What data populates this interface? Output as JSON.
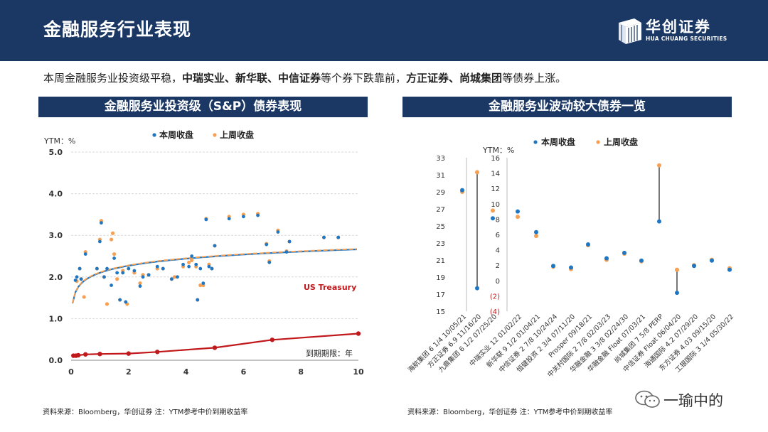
{
  "header": {
    "title": "金融服务行业表现",
    "logo_text": "华创证券",
    "logo_sub": "HUA CHUANG SECURITIES",
    "brand_color": "#1b3764"
  },
  "summary": {
    "p1": "本周金融服务业投资级平稳，",
    "b1": "中瑞实业、新华联、中信证券",
    "p2": "等个券下跌靠前，",
    "b2": "方正证券、尚城集团",
    "p3": "等债券上涨。"
  },
  "left_panel": {
    "title": "金融服务业投资级（S&P）债券表现",
    "source": "资料来源：Bloomberg，华创证券      注：YTM参考中价到期收益率"
  },
  "right_panel": {
    "title": "金融服务业波动较大债券一览",
    "source": "资料来源：Bloomberg，华创证券      注：YTM参考中价到期收益率"
  },
  "watermark": {
    "text": "一瑜中的"
  },
  "colors": {
    "this_week": "#1f77c4",
    "last_week": "#f5a055",
    "treasury": "#c0181b",
    "connector": "#555555"
  },
  "chart_data": [
    {
      "type": "scatter",
      "ylabel": "YTM：%",
      "xlabel": "到期期限：年",
      "xlim": [
        0,
        10
      ],
      "ylim": [
        0,
        5
      ],
      "x_ticks": [
        0,
        2,
        4,
        6,
        8,
        10
      ],
      "y_ticks": [
        "0.0",
        "1.0",
        "2.0",
        "3.0",
        "4.0",
        "5.0"
      ],
      "legend": [
        "本周收盘",
        "上周收盘"
      ],
      "treasury_label": "US Treasury",
      "series": [
        {
          "name": "本周收盘",
          "points": [
            [
              0.15,
              1.92
            ],
            [
              0.2,
              2.0
            ],
            [
              0.3,
              2.2
            ],
            [
              0.35,
              1.95
            ],
            [
              0.5,
              2.55
            ],
            [
              0.9,
              2.2
            ],
            [
              1.0,
              2.85
            ],
            [
              1.05,
              3.3
            ],
            [
              1.15,
              2.0
            ],
            [
              1.25,
              2.2
            ],
            [
              1.4,
              1.8
            ],
            [
              1.5,
              2.45
            ],
            [
              1.6,
              2.1
            ],
            [
              1.7,
              1.45
            ],
            [
              1.8,
              2.1
            ],
            [
              1.9,
              1.4
            ],
            [
              2.0,
              2.2
            ],
            [
              2.2,
              2.15
            ],
            [
              2.4,
              1.78
            ],
            [
              2.5,
              2.0
            ],
            [
              2.7,
              2.05
            ],
            [
              3.0,
              2.25
            ],
            [
              3.2,
              2.2
            ],
            [
              3.5,
              1.95
            ],
            [
              3.7,
              2.0
            ],
            [
              3.9,
              2.3
            ],
            [
              4.1,
              2.25
            ],
            [
              4.2,
              2.5
            ],
            [
              4.35,
              2.3
            ],
            [
              4.4,
              1.45
            ],
            [
              4.5,
              2.2
            ],
            [
              4.6,
              1.85
            ],
            [
              4.7,
              3.38
            ],
            [
              4.8,
              2.25
            ],
            [
              4.9,
              2.2
            ],
            [
              5.0,
              2.75
            ],
            [
              5.5,
              3.4
            ],
            [
              6.0,
              3.45
            ],
            [
              6.5,
              3.48
            ],
            [
              6.8,
              2.78
            ],
            [
              6.9,
              2.35
            ],
            [
              7.2,
              3.08
            ],
            [
              7.5,
              2.6
            ],
            [
              7.6,
              2.85
            ],
            [
              8.8,
              2.95
            ],
            [
              9.3,
              2.95
            ]
          ]
        },
        {
          "name": "上周收盘",
          "points": [
            [
              0.2,
              1.9
            ],
            [
              0.3,
              2.2
            ],
            [
              0.35,
              1.95
            ],
            [
              0.45,
              1.52
            ],
            [
              0.5,
              2.6
            ],
            [
              0.9,
              2.2
            ],
            [
              1.0,
              2.9
            ],
            [
              1.05,
              3.35
            ],
            [
              1.15,
              2.0
            ],
            [
              1.25,
              1.35
            ],
            [
              1.4,
              2.9
            ],
            [
              1.45,
              3.05
            ],
            [
              1.5,
              2.55
            ],
            [
              1.6,
              1.95
            ],
            [
              1.7,
              1.45
            ],
            [
              1.8,
              2.15
            ],
            [
              1.95,
              1.35
            ],
            [
              2.2,
              2.1
            ],
            [
              2.4,
              1.85
            ],
            [
              2.5,
              2.05
            ],
            [
              2.7,
              2.05
            ],
            [
              3.0,
              2.2
            ],
            [
              3.2,
              2.2
            ],
            [
              3.5,
              1.95
            ],
            [
              3.6,
              2.0
            ],
            [
              3.9,
              2.25
            ],
            [
              4.1,
              2.35
            ],
            [
              4.2,
              2.4
            ],
            [
              4.35,
              2.25
            ],
            [
              4.4,
              1.45
            ],
            [
              4.5,
              1.8
            ],
            [
              4.6,
              1.8
            ],
            [
              4.7,
              3.4
            ],
            [
              4.8,
              2.3
            ],
            [
              4.9,
              2.2
            ],
            [
              5.0,
              2.75
            ],
            [
              5.5,
              3.45
            ],
            [
              6.0,
              3.5
            ],
            [
              6.5,
              3.52
            ],
            [
              6.8,
              2.8
            ],
            [
              6.9,
              2.38
            ],
            [
              7.2,
              3.12
            ],
            [
              7.5,
              2.62
            ],
            [
              7.6,
              2.85
            ],
            [
              8.8,
              2.95
            ],
            [
              9.3,
              2.95
            ]
          ]
        },
        {
          "name": "US Treasury",
          "points": [
            [
              0.08,
              0.11
            ],
            [
              0.17,
              0.11
            ],
            [
              0.25,
              0.12
            ],
            [
              0.5,
              0.14
            ],
            [
              1,
              0.15
            ],
            [
              2,
              0.16
            ],
            [
              3,
              0.2
            ],
            [
              5,
              0.3
            ],
            [
              7,
              0.49
            ],
            [
              10,
              0.64
            ]
          ]
        }
      ]
    },
    {
      "type": "scatter",
      "ylabel": "YTM：%",
      "legend": [
        "本周收盘",
        "上周收盘"
      ],
      "left_axis_ticks": [
        "33",
        "31",
        "29",
        "27",
        "25",
        "23",
        "21",
        "19",
        "17",
        "15"
      ],
      "right_axis_ticks": [
        "16",
        "14",
        "12",
        "10",
        "8",
        "6",
        "4",
        "2",
        "0",
        "(2)",
        "(4)"
      ],
      "left_axis_range": [
        15,
        33
      ],
      "right_axis_range": [
        -4,
        16
      ],
      "categories": [
        "海航集团 6 1/4 10/05/21",
        "方正证券 6.9 11/16/20",
        "九鼎集团 6 1/2 07/25/20",
        "中瑞实业 12 01/02/22",
        "新华联 9 1/2 01/04/21",
        "中信证券 2 7/8 10/24/24",
        "恒健投资 2 3/4 07/11/20",
        "Prosper 09/18/21",
        "中关村国际 2 7/8 02/03/23",
        "华融金融 3 3/8 02/24/30",
        "华融金融 Float 07/03/21",
        "尚城集团 7 5/8 PERP",
        "中信证券 Float 06/04/20",
        "海通国际 4.2 07/29/20",
        "东方证券 4.03 09/15/20",
        "工银国际 3 1/4 05/30/22"
      ],
      "this_week": [
        29.2,
        17.7,
        25.9,
        9.0,
        6.3,
        1.9,
        1.7,
        4.7,
        2.9,
        3.6,
        2.6,
        7.7,
        -1.6,
        1.9,
        2.6,
        1.4
      ],
      "last_week": [
        29.0,
        31.3,
        26.8,
        8.3,
        5.8,
        1.8,
        1.5,
        4.6,
        2.7,
        3.5,
        2.5,
        15.0,
        1.4,
        2.0,
        2.7,
        1.6
      ],
      "axis_used": [
        "left",
        "left",
        "left",
        "right",
        "right",
        "right",
        "right",
        "right",
        "right",
        "right",
        "right",
        "right",
        "right",
        "right",
        "right",
        "right"
      ]
    }
  ]
}
